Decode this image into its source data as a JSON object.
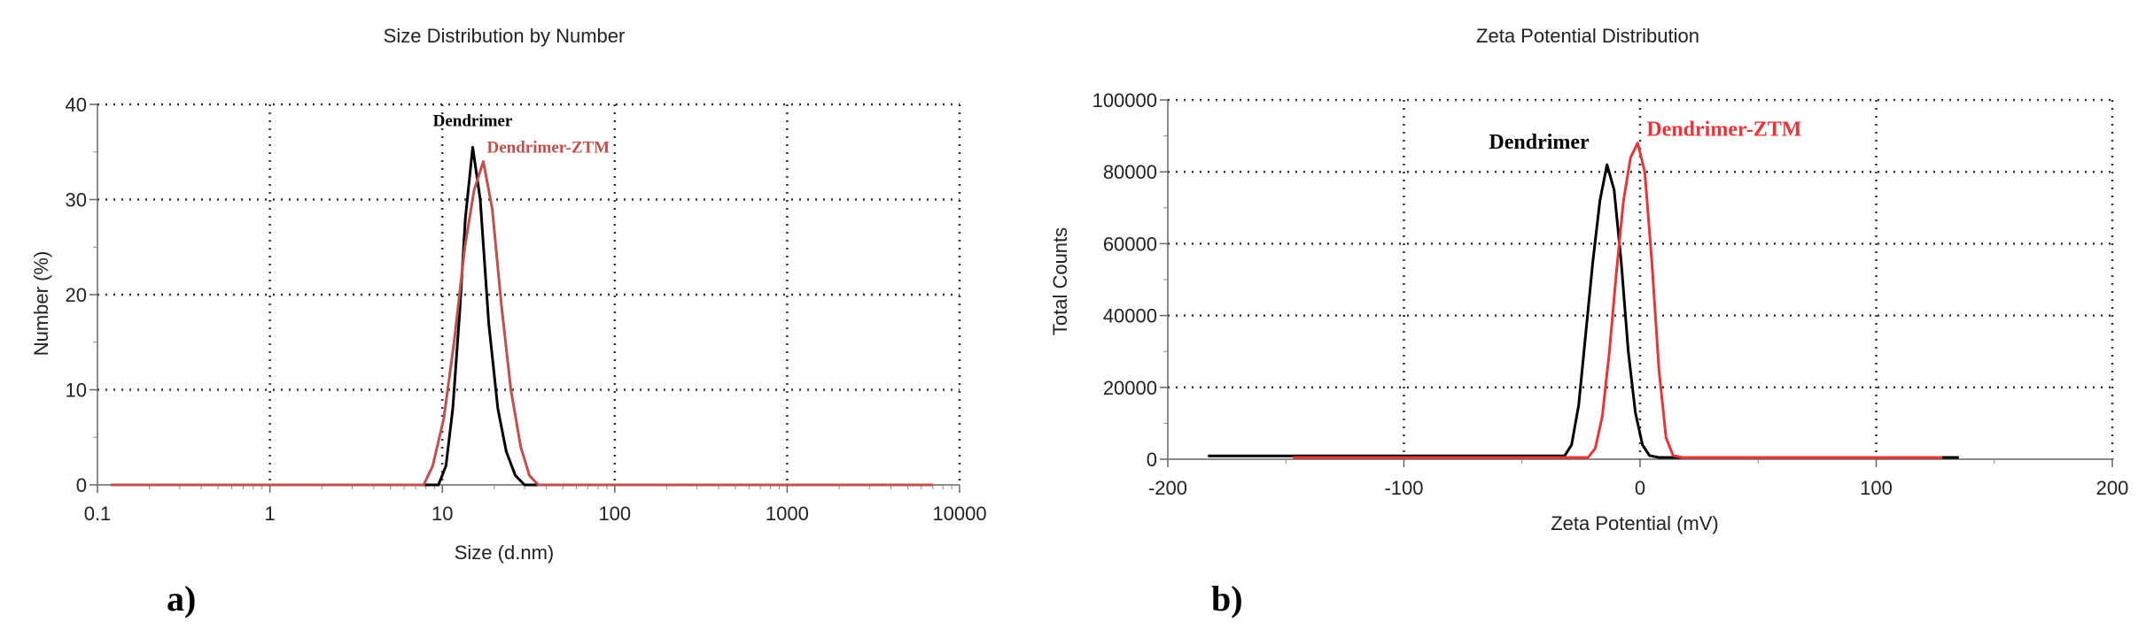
{
  "chart_data": [
    {
      "type": "line",
      "title": "Size Distribution by Number",
      "xlabel": "Size (d.nm)",
      "ylabel": "Number (%)",
      "panel_label": "a)",
      "xscale": "log",
      "xlim": [
        0.1,
        10000
      ],
      "ylim": [
        0,
        40
      ],
      "xticks": [
        "0.1",
        "1",
        "10",
        "100",
        "1000",
        "10000"
      ],
      "yticks": [
        "0",
        "10",
        "20",
        "30",
        "40"
      ],
      "grid": true,
      "series": [
        {
          "name": "Dendrimer",
          "color": "#000000",
          "points": [
            [
              0.12,
              0
            ],
            [
              9.5,
              0
            ],
            [
              10.5,
              2
            ],
            [
              11.5,
              8
            ],
            [
              12.6,
              18
            ],
            [
              13.6,
              28
            ],
            [
              15,
              35.5
            ],
            [
              16.6,
              30
            ],
            [
              18.6,
              17
            ],
            [
              21,
              8
            ],
            [
              23.5,
              3.5
            ],
            [
              26.5,
              1
            ],
            [
              30,
              0
            ],
            [
              7000,
              0
            ]
          ]
        },
        {
          "name": "Dendrimer-ZTM",
          "color": "#c0504d",
          "points": [
            [
              0.12,
              0
            ],
            [
              7.8,
              0
            ],
            [
              8.8,
              2
            ],
            [
              10.2,
              7
            ],
            [
              11.7,
              15
            ],
            [
              13.5,
              25
            ],
            [
              15.3,
              31
            ],
            [
              17.3,
              34
            ],
            [
              19.5,
              29
            ],
            [
              22,
              19
            ],
            [
              25,
              10
            ],
            [
              28.5,
              4
            ],
            [
              32,
              1
            ],
            [
              36,
              0
            ],
            [
              7000,
              0
            ]
          ]
        }
      ]
    },
    {
      "type": "line",
      "title": "Zeta Potential Distribution",
      "xlabel": "Zeta Potential (mV)",
      "ylabel": "Total Counts",
      "panel_label": "b)",
      "xlim": [
        -200,
        200
      ],
      "ylim": [
        0,
        100000
      ],
      "xticks": [
        "-200",
        "-100",
        "0",
        "100",
        "200"
      ],
      "yticks": [
        "0",
        "20000",
        "40000",
        "60000",
        "80000",
        "100000"
      ],
      "grid": true,
      "series": [
        {
          "name": "Dendrimer",
          "color": "#000000",
          "points": [
            [
              -183,
              900
            ],
            [
              -32,
              900
            ],
            [
              -29,
              4000
            ],
            [
              -26,
              15000
            ],
            [
              -23,
              35000
            ],
            [
              -20,
              55000
            ],
            [
              -17,
              72000
            ],
            [
              -14,
              82000
            ],
            [
              -11,
              75000
            ],
            [
              -8,
              55000
            ],
            [
              -5,
              30000
            ],
            [
              -2,
              13000
            ],
            [
              1,
              4000
            ],
            [
              4,
              1000
            ],
            [
              8,
              500
            ],
            [
              135,
              500
            ]
          ]
        },
        {
          "name": "Dendrimer-ZTM",
          "color": "#e8353a",
          "points": [
            [
              -147,
              500
            ],
            [
              -22,
              500
            ],
            [
              -19,
              3000
            ],
            [
              -16,
              12000
            ],
            [
              -13,
              30000
            ],
            [
              -10,
              52000
            ],
            [
              -7,
              72000
            ],
            [
              -4,
              84000
            ],
            [
              -1,
              88000
            ],
            [
              2,
              80000
            ],
            [
              5,
              55000
            ],
            [
              8,
              25000
            ],
            [
              11,
              6000
            ],
            [
              14,
              1000
            ],
            [
              18,
              500
            ],
            [
              128,
              500
            ]
          ]
        }
      ]
    }
  ]
}
